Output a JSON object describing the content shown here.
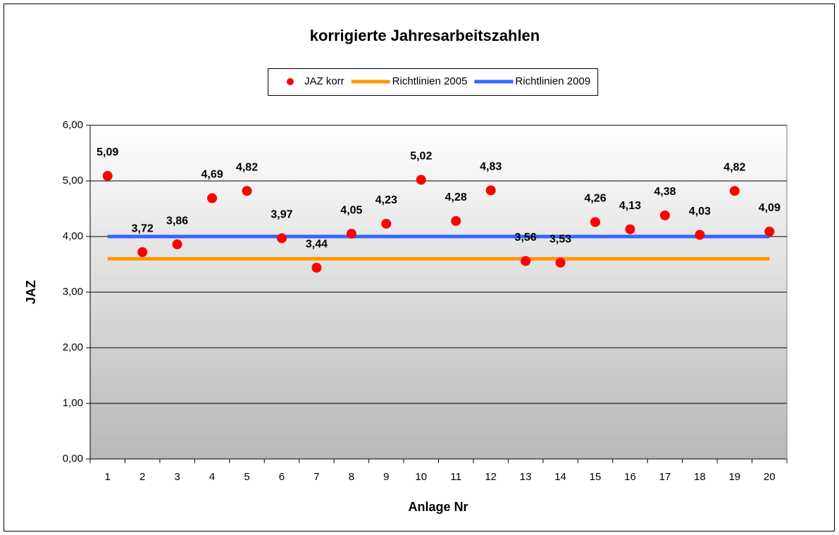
{
  "chart_data": {
    "type": "line",
    "title": "korrigierte Jahresarbeitszahlen",
    "x_label": "Anlage Nr",
    "y_label": "JAZ",
    "categories": [
      "1",
      "2",
      "3",
      "4",
      "5",
      "6",
      "7",
      "8",
      "9",
      "10",
      "11",
      "12",
      "13",
      "14",
      "15",
      "16",
      "17",
      "18",
      "19",
      "20"
    ],
    "series": [
      {
        "name": "JAZ korr",
        "color": "#ff0000",
        "marker": "circle",
        "line": false,
        "values": [
          5.09,
          3.72,
          3.86,
          4.69,
          4.82,
          3.97,
          3.44,
          4.05,
          4.23,
          5.02,
          4.28,
          4.83,
          3.56,
          3.53,
          4.26,
          4.13,
          4.38,
          4.03,
          4.82,
          4.09
        ],
        "value_labels": [
          "5,09",
          "3,72",
          "3,86",
          "4,69",
          "4,82",
          "3,97",
          "3,44",
          "4,05",
          "4,23",
          "5,02",
          "4,28",
          "4,83",
          "3,56",
          "3,53",
          "4,26",
          "4,13",
          "4,38",
          "4,03",
          "4,82",
          "4,09"
        ]
      },
      {
        "name": "Richtlinien 2005",
        "color": "#ff9900",
        "marker": "none",
        "line": true,
        "values": [
          3.6,
          3.6,
          3.6,
          3.6,
          3.6,
          3.6,
          3.6,
          3.6,
          3.6,
          3.6,
          3.6,
          3.6,
          3.6,
          3.6,
          3.6,
          3.6,
          3.6,
          3.6,
          3.6,
          3.6
        ]
      },
      {
        "name": "Richtlinien 2009",
        "color": "#3366ff",
        "marker": "none",
        "line": true,
        "values": [
          4.0,
          4.0,
          4.0,
          4.0,
          4.0,
          4.0,
          4.0,
          4.0,
          4.0,
          4.0,
          4.0,
          4.0,
          4.0,
          4.0,
          4.0,
          4.0,
          4.0,
          4.0,
          4.0,
          4.0
        ]
      }
    ],
    "ylim": [
      0,
      6
    ],
    "yticks": [
      {
        "value": 0,
        "label": "0,00"
      },
      {
        "value": 1,
        "label": "1,00"
      },
      {
        "value": 2,
        "label": "2,00"
      },
      {
        "value": 3,
        "label": "3,00"
      },
      {
        "value": 4,
        "label": "4,00"
      },
      {
        "value": 5,
        "label": "5,00"
      },
      {
        "value": 6,
        "label": "6,00"
      }
    ],
    "grid": true,
    "legend": "top"
  }
}
